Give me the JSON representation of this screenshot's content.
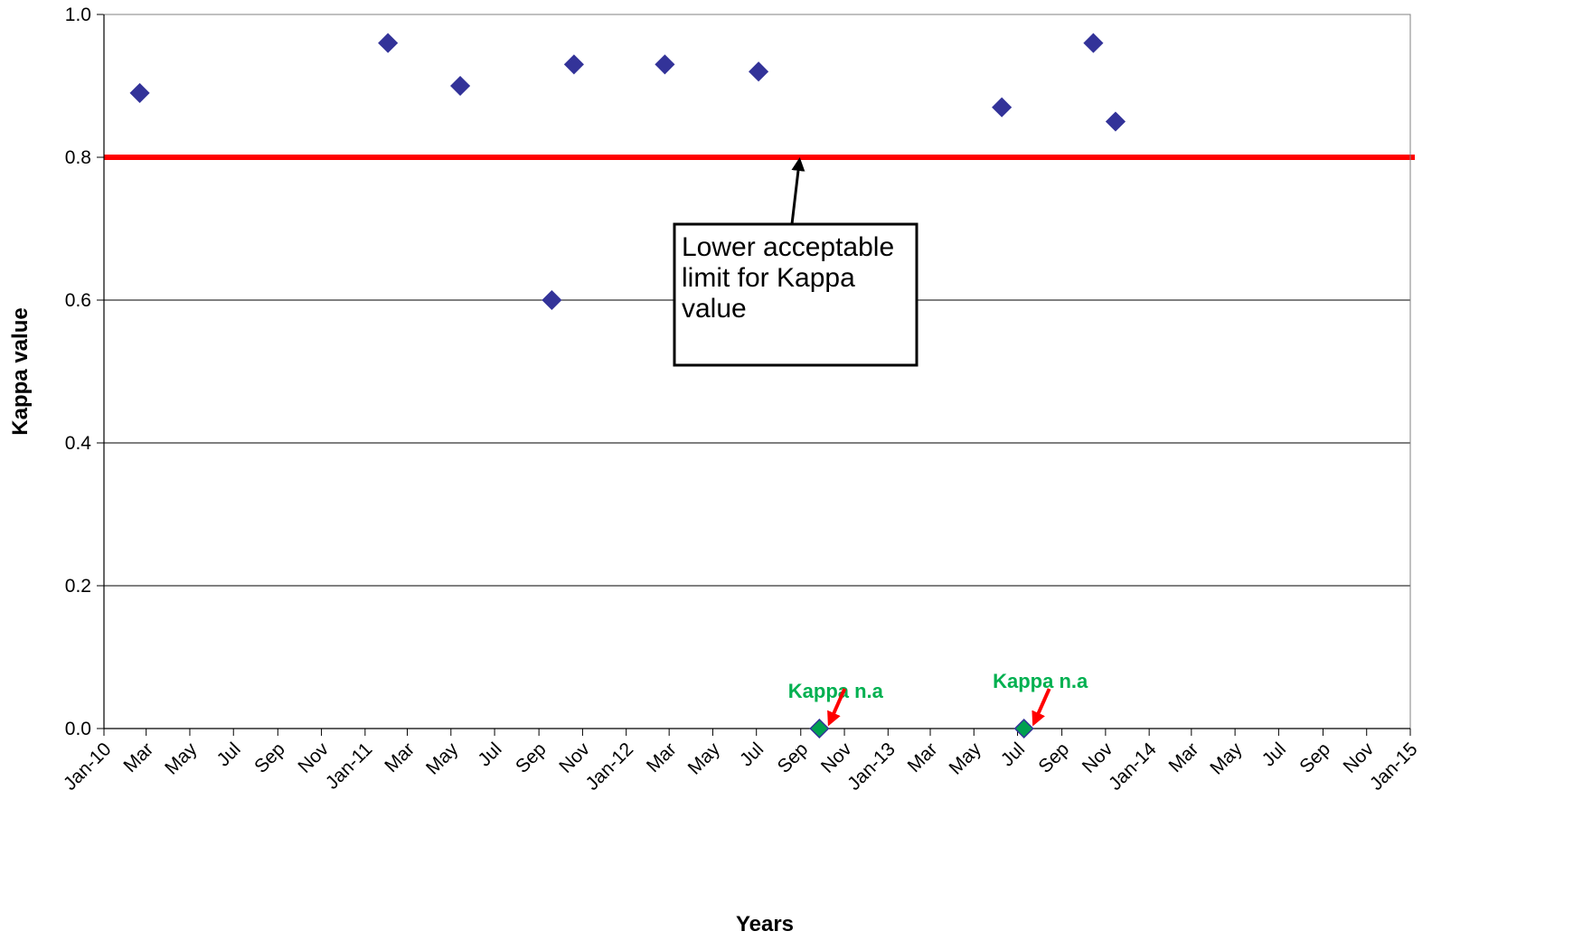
{
  "chart_data": {
    "type": "scatter",
    "xlabel": "Years",
    "ylabel": "Kappa value",
    "x_type": "date",
    "xlim": [
      "2010-01-01",
      "2015-01-01"
    ],
    "ylim": [
      0,
      1.0
    ],
    "y_ticks": [
      "0.0",
      "0.2",
      "0.4",
      "0.6",
      "0.8",
      "1.0"
    ],
    "y_tick_values": [
      0,
      0.2,
      0.4,
      0.6,
      0.8,
      1.0
    ],
    "x_ticks": [
      "Jan-10",
      "Mar",
      "May",
      "Jul",
      "Sep",
      "Nov",
      "Jan-11",
      "Mar",
      "May",
      "Jul",
      "Sep",
      "Nov",
      "Jan-12",
      "Mar",
      "May",
      "Jul",
      "Sep",
      "Nov",
      "Jan-13",
      "Mar",
      "May",
      "Jul",
      "Sep",
      "Nov",
      "Jan-14",
      "Mar",
      "May",
      "Jul",
      "Sep",
      "Nov",
      "Jan-15"
    ],
    "x_tick_dates": [
      "2010-01-01",
      "2010-03-01",
      "2010-05-01",
      "2010-07-01",
      "2010-09-01",
      "2010-11-01",
      "2011-01-01",
      "2011-03-01",
      "2011-05-01",
      "2011-07-01",
      "2011-09-01",
      "2011-11-01",
      "2012-01-01",
      "2012-03-01",
      "2012-05-01",
      "2012-07-01",
      "2012-09-01",
      "2012-11-01",
      "2013-01-01",
      "2013-03-01",
      "2013-05-01",
      "2013-07-01",
      "2013-09-01",
      "2013-11-01",
      "2014-01-01",
      "2014-03-01",
      "2014-05-01",
      "2014-07-01",
      "2014-09-01",
      "2014-11-01",
      "2015-01-01"
    ],
    "grid": "horizontal",
    "series": [
      {
        "color": "#333399",
        "points": [
          {
            "x": "2010-02-20",
            "y": 0.89
          },
          {
            "x": "2011-02-02",
            "y": 0.96
          },
          {
            "x": "2011-05-14",
            "y": 0.9
          },
          {
            "x": "2011-09-19",
            "y": 0.6
          },
          {
            "x": "2011-10-20",
            "y": 0.93
          },
          {
            "x": "2012-02-24",
            "y": 0.93
          },
          {
            "x": "2012-07-04",
            "y": 0.92
          },
          {
            "x": "2013-06-09",
            "y": 0.87
          },
          {
            "x": "2013-10-15",
            "y": 0.96
          },
          {
            "x": "2013-11-15",
            "y": 0.85
          }
        ]
      },
      {
        "color": "#00A050",
        "points": [
          {
            "x": "2012-09-27",
            "y": 0.0
          },
          {
            "x": "2013-07-10",
            "y": 0.0
          }
        ]
      }
    ],
    "reference_line": {
      "y": 0.8,
      "color": "#FF0000"
    },
    "annotations": [
      {
        "text": "Kappa n.a",
        "x": "2012-09-27",
        "color": "#00B050",
        "arrow_color": "#FF0000"
      },
      {
        "text": "Kappa n.a",
        "x": "2013-07-10",
        "color": "#00B050",
        "arrow_color": "#FF0000"
      }
    ],
    "callout": {
      "lines": [
        "Lower acceptable",
        "limit for Kappa",
        "value"
      ]
    }
  }
}
